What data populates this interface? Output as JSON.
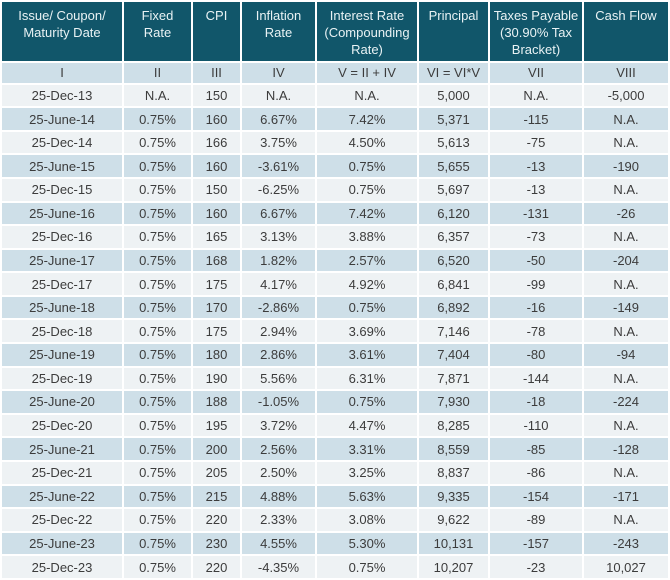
{
  "colors": {
    "header_bg": "#11566A",
    "header_text": "#E9F2F4",
    "row_light": "#EEF2F4",
    "row_blue": "#CEDFE8",
    "body_text": "#3C3C3C",
    "separator": "#FFFFFF"
  },
  "chart_data": {
    "type": "table",
    "columns": [
      "Issue/ Coupon/\nMaturity Date",
      "Fixed\nRate",
      "CPI",
      "Inflation\nRate",
      "Interest Rate\n(Compounding\nRate)",
      "Principal",
      "Taxes Payable\n(30.90% Tax\nBracket)",
      "Cash Flow"
    ],
    "column_numerals": [
      "I",
      "II",
      "III",
      "IV",
      "V = II + IV",
      "VI = VI*V",
      "VII",
      "VIII"
    ],
    "rows": [
      [
        "25-Dec-13",
        "N.A.",
        "150",
        "N.A.",
        "N.A.",
        "5,000",
        "N.A.",
        "-5,000"
      ],
      [
        "25-June-14",
        "0.75%",
        "160",
        "6.67%",
        "7.42%",
        "5,371",
        "-115",
        "N.A."
      ],
      [
        "25-Dec-14",
        "0.75%",
        "166",
        "3.75%",
        "4.50%",
        "5,613",
        "-75",
        "N.A."
      ],
      [
        "25-June-15",
        "0.75%",
        "160",
        "-3.61%",
        "0.75%",
        "5,655",
        "-13",
        "-190"
      ],
      [
        "25-Dec-15",
        "0.75%",
        "150",
        "-6.25%",
        "0.75%",
        "5,697",
        "-13",
        "N.A."
      ],
      [
        "25-June-16",
        "0.75%",
        "160",
        "6.67%",
        "7.42%",
        "6,120",
        "-131",
        "-26"
      ],
      [
        "25-Dec-16",
        "0.75%",
        "165",
        "3.13%",
        "3.88%",
        "6,357",
        "-73",
        "N.A."
      ],
      [
        "25-June-17",
        "0.75%",
        "168",
        "1.82%",
        "2.57%",
        "6,520",
        "-50",
        "-204"
      ],
      [
        "25-Dec-17",
        "0.75%",
        "175",
        "4.17%",
        "4.92%",
        "6,841",
        "-99",
        "N.A."
      ],
      [
        "25-June-18",
        "0.75%",
        "170",
        "-2.86%",
        "0.75%",
        "6,892",
        "-16",
        "-149"
      ],
      [
        "25-Dec-18",
        "0.75%",
        "175",
        "2.94%",
        "3.69%",
        "7,146",
        "-78",
        "N.A."
      ],
      [
        "25-June-19",
        "0.75%",
        "180",
        "2.86%",
        "3.61%",
        "7,404",
        "-80",
        "-94"
      ],
      [
        "25-Dec-19",
        "0.75%",
        "190",
        "5.56%",
        "6.31%",
        "7,871",
        "-144",
        "N.A."
      ],
      [
        "25-June-20",
        "0.75%",
        "188",
        "-1.05%",
        "0.75%",
        "7,930",
        "-18",
        "-224"
      ],
      [
        "25-Dec-20",
        "0.75%",
        "195",
        "3.72%",
        "4.47%",
        "8,285",
        "-110",
        "N.A."
      ],
      [
        "25-June-21",
        "0.75%",
        "200",
        "2.56%",
        "3.31%",
        "8,559",
        "-85",
        "-128"
      ],
      [
        "25-Dec-21",
        "0.75%",
        "205",
        "2.50%",
        "3.25%",
        "8,837",
        "-86",
        "N.A."
      ],
      [
        "25-June-22",
        "0.75%",
        "215",
        "4.88%",
        "5.63%",
        "9,335",
        "-154",
        "-171"
      ],
      [
        "25-Dec-22",
        "0.75%",
        "220",
        "2.33%",
        "3.08%",
        "9,622",
        "-89",
        "N.A."
      ],
      [
        "25-June-23",
        "0.75%",
        "230",
        "4.55%",
        "5.30%",
        "10,131",
        "-157",
        "-243"
      ],
      [
        "25-Dec-23",
        "0.75%",
        "220",
        "-4.35%",
        "0.75%",
        "10,207",
        "-23",
        "10,027"
      ]
    ]
  }
}
